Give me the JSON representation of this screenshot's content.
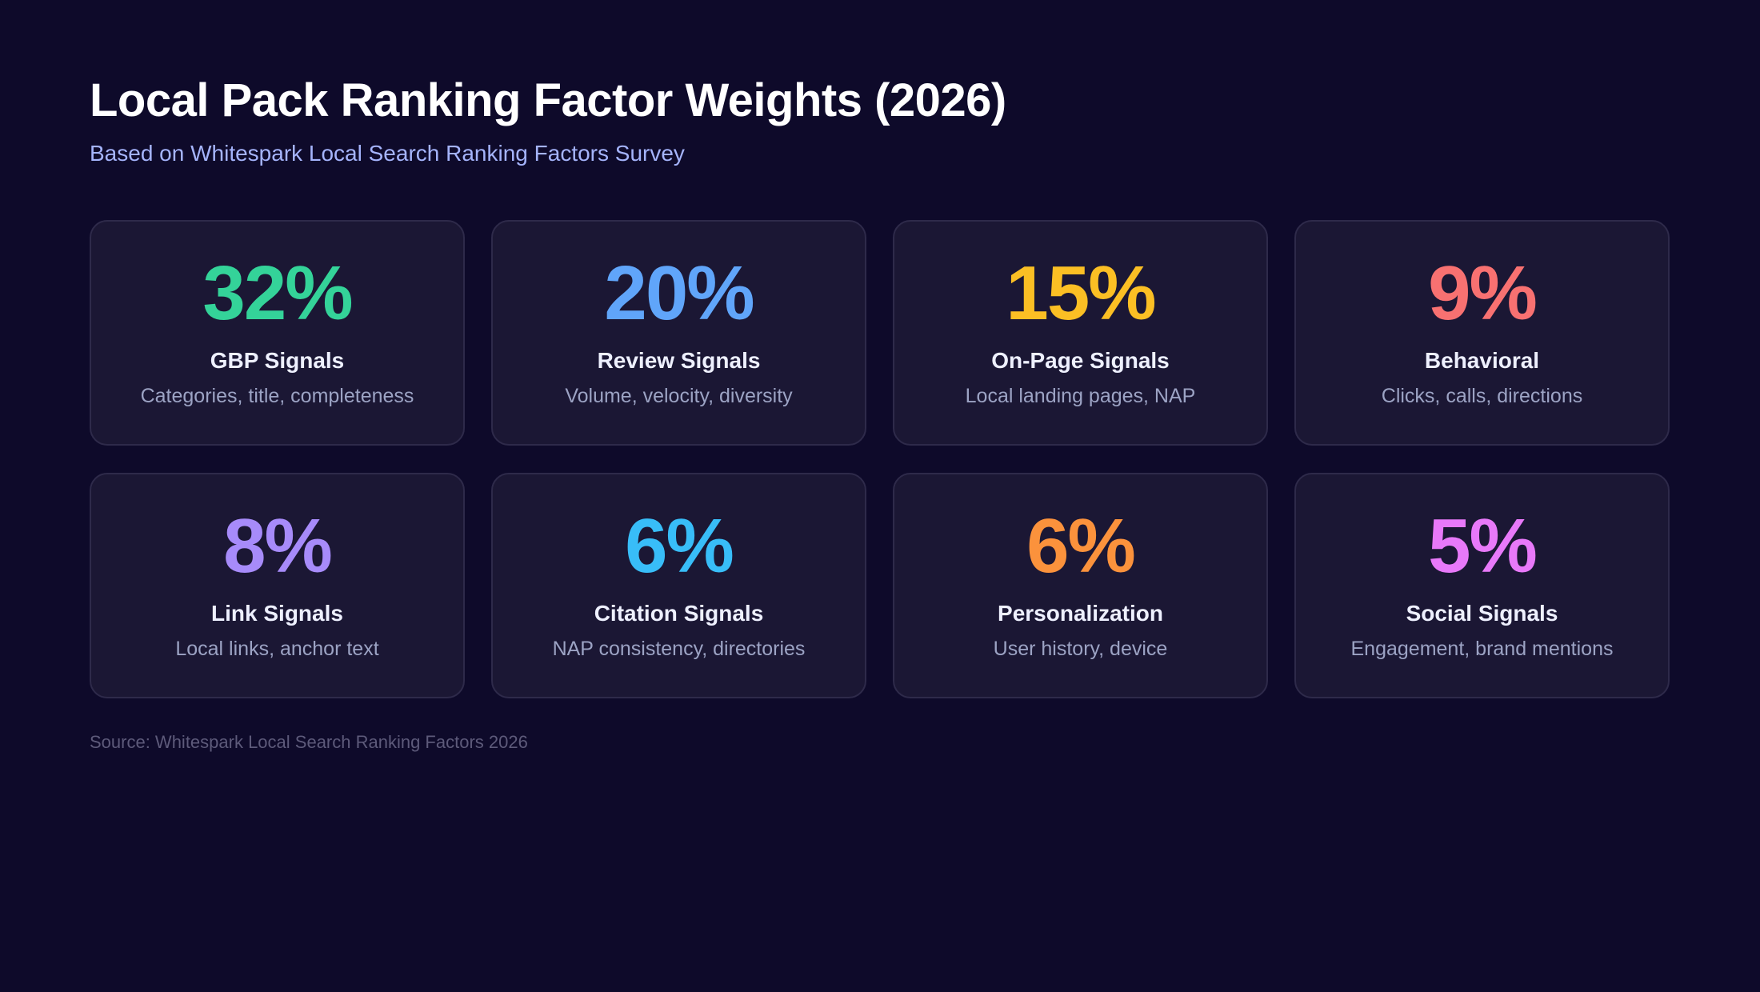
{
  "header": {
    "title": "Local Pack Ranking Factor Weights (2026)",
    "subtitle": "Based on Whitespark Local Search Ranking Factors Survey"
  },
  "cards": [
    {
      "value": "32%",
      "label": "GBP Signals",
      "description": "Categories, title, completeness",
      "color": "#34d399"
    },
    {
      "value": "20%",
      "label": "Review Signals",
      "description": "Volume, velocity, diversity",
      "color": "#60a5fa"
    },
    {
      "value": "15%",
      "label": "On-Page Signals",
      "description": "Local landing pages, NAP",
      "color": "#fbbf24"
    },
    {
      "value": "9%",
      "label": "Behavioral",
      "description": "Clicks, calls, directions",
      "color": "#f87171"
    },
    {
      "value": "8%",
      "label": "Link Signals",
      "description": "Local links, anchor text",
      "color": "#a78bfa"
    },
    {
      "value": "6%",
      "label": "Citation Signals",
      "description": "NAP consistency, directories",
      "color": "#38bdf8"
    },
    {
      "value": "6%",
      "label": "Personalization",
      "description": "User history, device",
      "color": "#fb923c"
    },
    {
      "value": "5%",
      "label": "Social Signals",
      "description": "Engagement, brand mentions",
      "color": "#e879f9"
    }
  ],
  "footer": {
    "source": "Source: Whitespark Local Search Ranking Factors 2026"
  }
}
